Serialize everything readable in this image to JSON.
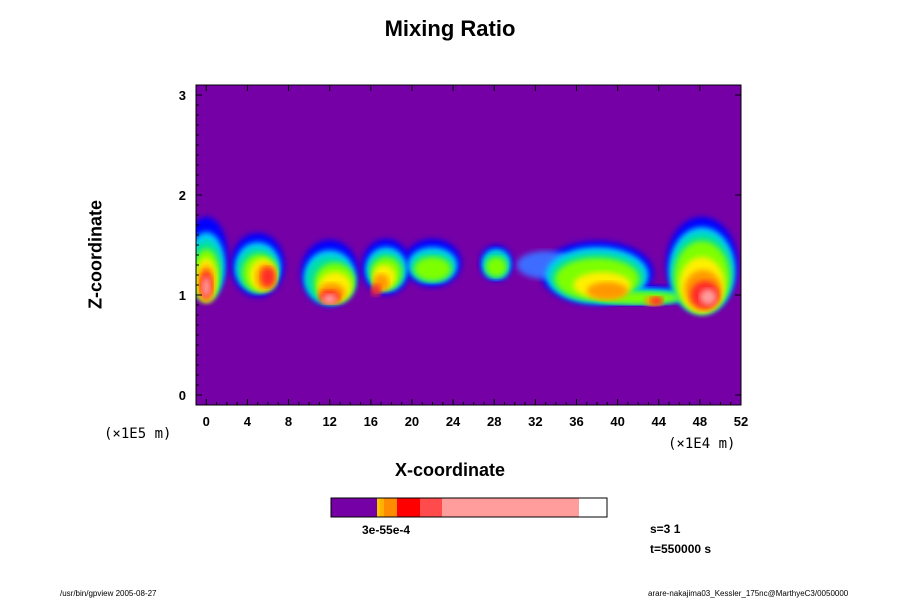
{
  "chart_data": {
    "type": "heatmap",
    "title": "Mixing Ratio",
    "xlabel": "X-coordinate",
    "ylabel": "Z-coordinate",
    "x_unit": "(×1E4 m)",
    "y_unit": "(×1E5 m)",
    "xlim": [
      -1,
      52
    ],
    "ylim": [
      -0.1,
      3.1
    ],
    "x_ticks": [
      0,
      4,
      8,
      12,
      16,
      20,
      24,
      28,
      32,
      36,
      40,
      44,
      48,
      52
    ],
    "y_ticks": [
      0,
      1,
      2,
      3
    ],
    "background_color": "#7400a6",
    "colorbar": {
      "segment_colors": [
        "#7400a6",
        "#f5c800",
        "#ff8c00",
        "#ff0000",
        "#ff4b4b",
        "#ff9c9c"
      ],
      "labels": "3e-55e-4"
    },
    "annotations": {
      "step": "s=3 1",
      "time": "t=550000 s"
    }
  },
  "footer": {
    "left": "/usr/bin/gpview 2005-08-27",
    "right": "arare-nakajima03_Kessler_175nc@MarthyeC3/0050000"
  }
}
